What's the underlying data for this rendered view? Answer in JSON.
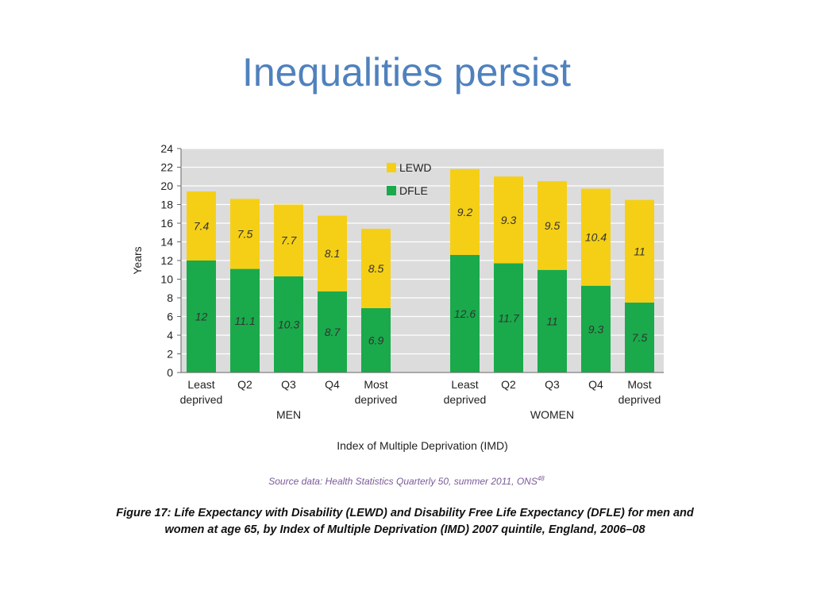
{
  "slide": {
    "title": "Inequalities persist"
  },
  "chart_data": {
    "type": "bar",
    "stacked": true,
    "ylabel": "Years",
    "xlabel": "Index of Multiple Deprivation (IMD)",
    "ylim": [
      0,
      24
    ],
    "yticks": [
      0,
      2,
      4,
      6,
      8,
      10,
      12,
      14,
      16,
      18,
      20,
      22,
      24
    ],
    "grid": true,
    "legend_position": "top-center",
    "groups": [
      {
        "name": "MEN",
        "categories": [
          [
            "Least",
            "deprived"
          ],
          [
            "Q2"
          ],
          [
            "Q3"
          ],
          [
            "Q4"
          ],
          [
            "Most",
            "deprived"
          ]
        ]
      },
      {
        "name": "WOMEN",
        "categories": [
          [
            "Least",
            "deprived"
          ],
          [
            "Q2"
          ],
          [
            "Q3"
          ],
          [
            "Q4"
          ],
          [
            "Most",
            "deprived"
          ]
        ]
      }
    ],
    "series": [
      {
        "name": "DFLE",
        "color": "#1aaa4b",
        "values": [
          12,
          11.1,
          10.3,
          8.7,
          6.9,
          12.6,
          11.7,
          11,
          9.3,
          7.5
        ]
      },
      {
        "name": "LEWD",
        "color": "#f5cf16",
        "values": [
          7.4,
          7.5,
          7.7,
          8.1,
          8.5,
          9.2,
          9.3,
          9.5,
          10.4,
          11
        ]
      }
    ],
    "legend_order": [
      "LEWD",
      "DFLE"
    ],
    "plot_background": "#dcdcdc"
  },
  "source": {
    "text": "Source data: Health Statistics Quarterly 50, summer 2011, ONS",
    "superscript": "48"
  },
  "caption": {
    "line1": "Figure 17:  Life Expectancy with Disability (LEWD) and Disability Free Life Expectancy (DFLE) for men and",
    "line2": "women at age 65, by Index of Multiple Deprivation (IMD) 2007 quintile, England, 2006–08"
  }
}
